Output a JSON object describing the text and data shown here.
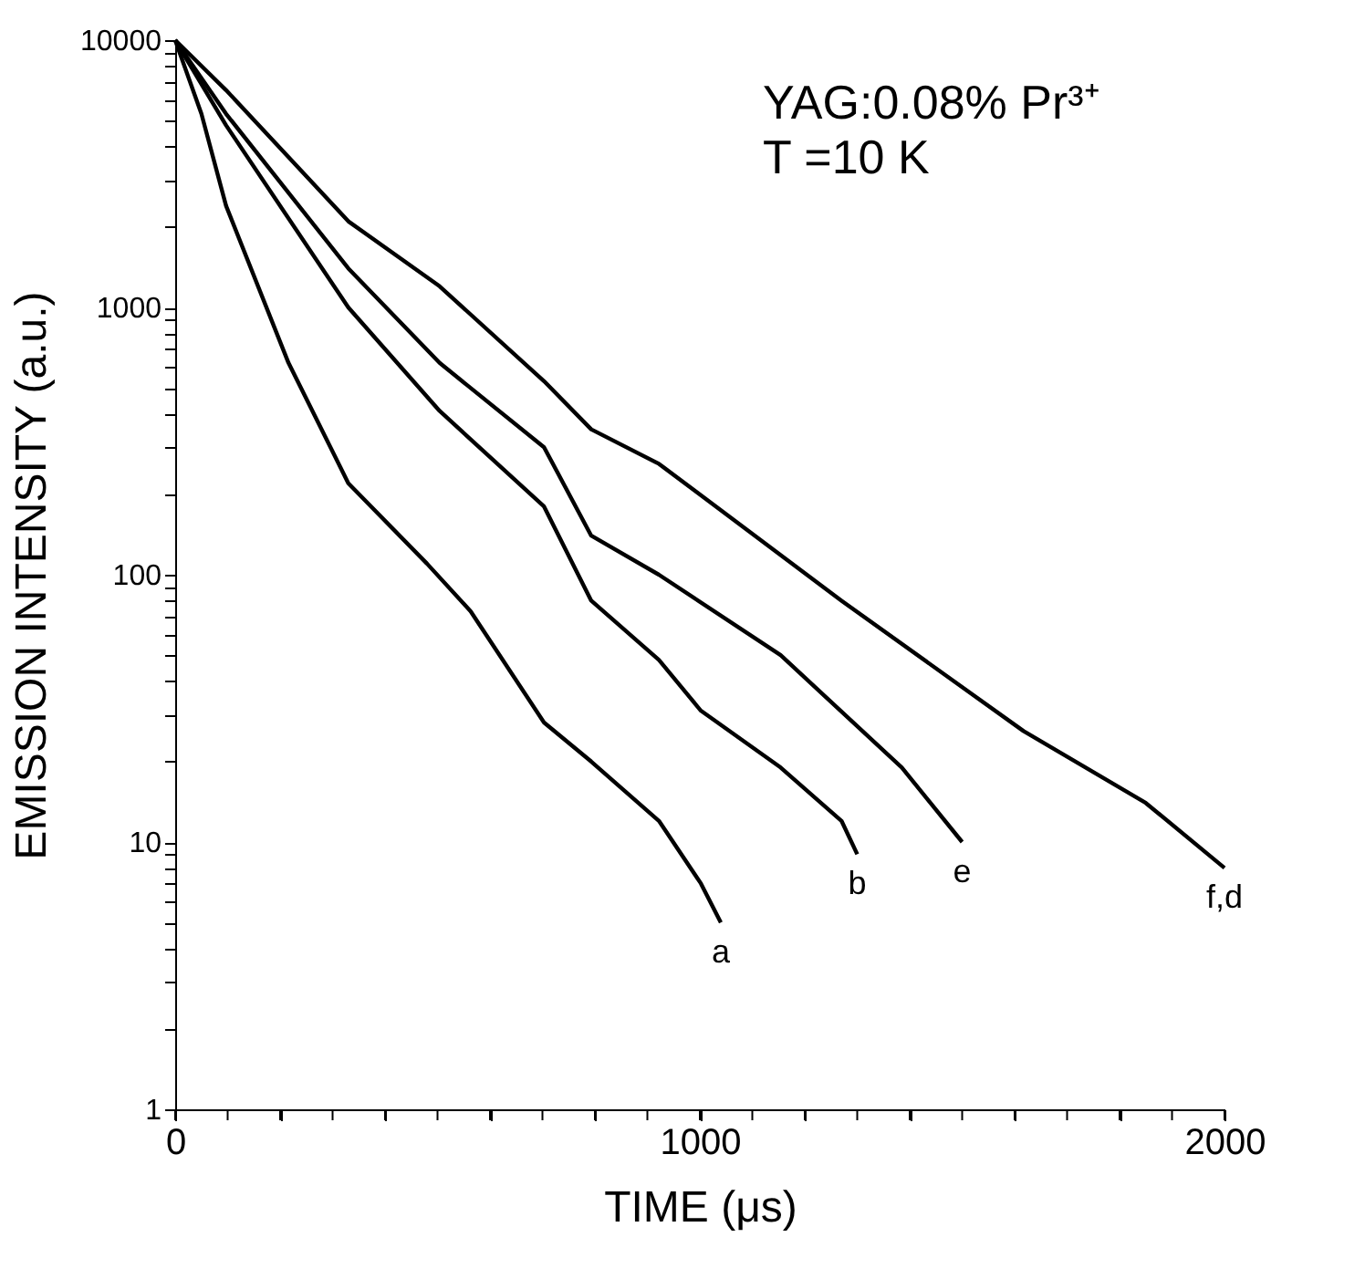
{
  "chart_data": {
    "type": "line",
    "xlabel": "TIME (μs)",
    "ylabel": "EMISSION INTENSITY (a.u.)",
    "log": "y",
    "grid": false,
    "marker": "none",
    "line_style": "solid",
    "xlim": [
      0,
      2000
    ],
    "ylim": [
      1,
      10000
    ],
    "xticks": [
      0,
      {
        "value": 100,
        "label": null
      },
      {
        "value": 200,
        "label": null
      },
      {
        "value": 300,
        "label": null
      },
      {
        "value": 400,
        "label": null
      },
      {
        "value": 500,
        "label": null
      },
      {
        "value": 600,
        "label": null
      },
      {
        "value": 700,
        "label": null
      },
      {
        "value": 800,
        "label": null
      },
      {
        "value": 900,
        "label": null
      },
      1000,
      {
        "value": 1100,
        "label": null
      },
      {
        "value": 1200,
        "label": null
      },
      {
        "value": 1300,
        "label": null
      },
      {
        "value": 1400,
        "label": null
      },
      {
        "value": 1500,
        "label": null
      },
      {
        "value": 1600,
        "label": null
      },
      {
        "value": 1700,
        "label": null
      },
      {
        "value": 1800,
        "label": null
      },
      {
        "value": 1900,
        "label": null
      },
      2000
    ],
    "yticks": [
      1,
      {
        "value": 2,
        "label": null
      },
      {
        "value": 3,
        "label": null
      },
      {
        "value": 4,
        "label": null
      },
      {
        "value": 5,
        "label": null
      },
      {
        "value": 6,
        "label": null
      },
      {
        "value": 7,
        "label": null
      },
      {
        "value": 8,
        "label": null
      },
      {
        "value": 9,
        "label": null
      },
      10,
      {
        "value": 20,
        "label": null
      },
      {
        "value": 30,
        "label": null
      },
      {
        "value": 40,
        "label": null
      },
      {
        "value": 50,
        "label": null
      },
      {
        "value": 60,
        "label": null
      },
      {
        "value": 70,
        "label": null
      },
      {
        "value": 80,
        "label": null
      },
      {
        "value": 90,
        "label": null
      },
      100,
      {
        "value": 200,
        "label": null
      },
      {
        "value": 300,
        "label": null
      },
      {
        "value": 400,
        "label": null
      },
      {
        "value": 500,
        "label": null
      },
      {
        "value": 600,
        "label": null
      },
      {
        "value": 700,
        "label": null
      },
      {
        "value": 800,
        "label": null
      },
      {
        "value": 900,
        "label": null
      },
      1000,
      {
        "value": 2000,
        "label": null
      },
      {
        "value": 3000,
        "label": null
      },
      {
        "value": 4000,
        "label": null
      },
      {
        "value": 5000,
        "label": null
      },
      {
        "value": 6000,
        "label": null
      },
      {
        "value": 7000,
        "label": null
      },
      {
        "value": 8000,
        "label": null
      },
      {
        "value": 9000,
        "label": null
      },
      10000
    ],
    "annotations": [
      "YAG:0.08% Pr³⁺",
      "T =10 K"
    ],
    "series": [
      {
        "name": "a",
        "color": "#000000",
        "x": [
          0,
          50,
          97,
          216,
          330,
          480,
          563,
          703,
          793,
          922,
          1002,
          1040
        ],
        "values": [
          10000,
          5300,
          2400,
          620,
          220,
          110,
          73,
          28,
          20,
          12,
          7,
          5
        ]
      },
      {
        "name": "b",
        "color": "#000000",
        "x": [
          0,
          97,
          330,
          504,
          703,
          793,
          922,
          1002,
          1154,
          1270,
          1300
        ],
        "values": [
          10000,
          4800,
          1000,
          410,
          180,
          80,
          48,
          31,
          19,
          12,
          9
        ]
      },
      {
        "name": "e",
        "color": "#000000",
        "x": [
          0,
          97,
          330,
          504,
          703,
          793,
          922,
          1154,
          1385,
          1500
        ],
        "values": [
          10000,
          5300,
          1400,
          620,
          300,
          140,
          100,
          50,
          19,
          10
        ]
      },
      {
        "name": "f,d",
        "color": "#000000",
        "x": [
          0,
          97,
          330,
          504,
          703,
          793,
          922,
          1270,
          1617,
          1850,
          2000
        ],
        "values": [
          10000,
          6500,
          2100,
          1200,
          530,
          350,
          260,
          80,
          26,
          14,
          8
        ]
      }
    ]
  }
}
